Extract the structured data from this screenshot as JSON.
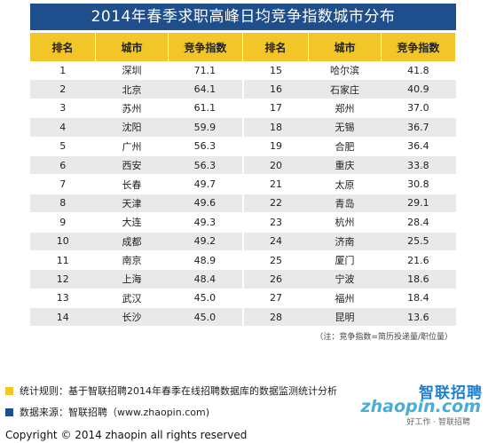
{
  "title": "2014年春季求职高峰日均竞争指数城市分布",
  "headers": [
    "排名",
    "城市",
    "竞争指数",
    "排名",
    "城市",
    "竞争指数"
  ],
  "rows": [
    {
      "rank_a": "1",
      "city_a": "深圳",
      "value_a": "71.1",
      "rank_b": "15",
      "city_b": "哈尔滨",
      "value_b": "41.8"
    },
    {
      "rank_a": "2",
      "city_a": "北京",
      "value_a": "64.1",
      "rank_b": "16",
      "city_b": "石家庄",
      "value_b": "40.9"
    },
    {
      "rank_a": "3",
      "city_a": "苏州",
      "value_a": "61.1",
      "rank_b": "17",
      "city_b": "郑州",
      "value_b": "37.0"
    },
    {
      "rank_a": "4",
      "city_a": "沈阳",
      "value_a": "59.9",
      "rank_b": "18",
      "city_b": "无锡",
      "value_b": "36.7"
    },
    {
      "rank_a": "5",
      "city_a": "广州",
      "value_a": "56.3",
      "rank_b": "19",
      "city_b": "合肥",
      "value_b": "36.4"
    },
    {
      "rank_a": "6",
      "city_a": "西安",
      "value_a": "56.3",
      "rank_b": "20",
      "city_b": "重庆",
      "value_b": "33.8"
    },
    {
      "rank_a": "7",
      "city_a": "长春",
      "value_a": "49.7",
      "rank_b": "21",
      "city_b": "太原",
      "value_b": "30.8"
    },
    {
      "rank_a": "8",
      "city_a": "天津",
      "value_a": "49.6",
      "rank_b": "22",
      "city_b": "青岛",
      "value_b": "29.1"
    },
    {
      "rank_a": "9",
      "city_a": "大连",
      "value_a": "49.3",
      "rank_b": "23",
      "city_b": "杭州",
      "value_b": "28.4"
    },
    {
      "rank_a": "10",
      "city_a": "成都",
      "value_a": "49.2",
      "rank_b": "24",
      "city_b": "济南",
      "value_b": "25.5"
    },
    {
      "rank_a": "11",
      "city_a": "南京",
      "value_a": "48.9",
      "rank_b": "25",
      "city_b": "厦门",
      "value_b": "21.6"
    },
    {
      "rank_a": "12",
      "city_a": "上海",
      "value_a": "48.4",
      "rank_b": "26",
      "city_b": "宁波",
      "value_b": "18.6"
    },
    {
      "rank_a": "13",
      "city_a": "武汉",
      "value_a": "45.0",
      "rank_b": "27",
      "city_b": "福州",
      "value_b": "18.4"
    },
    {
      "rank_a": "14",
      "city_a": "长沙",
      "value_a": "45.0",
      "rank_b": "28",
      "city_b": "昆明",
      "value_b": "13.6"
    }
  ],
  "note": "（注：竞争指数=简历投递量/职位量）",
  "legend": [
    {
      "color": "#f2c529",
      "text": "统计规则：基于智联招聘2014年春季在线招聘数据库的数据监测统计分析"
    },
    {
      "color": "#1f4e8c",
      "text": "数据来源：智联招聘（www.zhaopin.com)"
    }
  ],
  "logo": {
    "cn": "智联招聘",
    "en": "zhaopin.com",
    "tag": "好工作 · 智联招聘"
  },
  "copyright": "Copyright  ©  2014 zhaopin all rights reserved"
}
